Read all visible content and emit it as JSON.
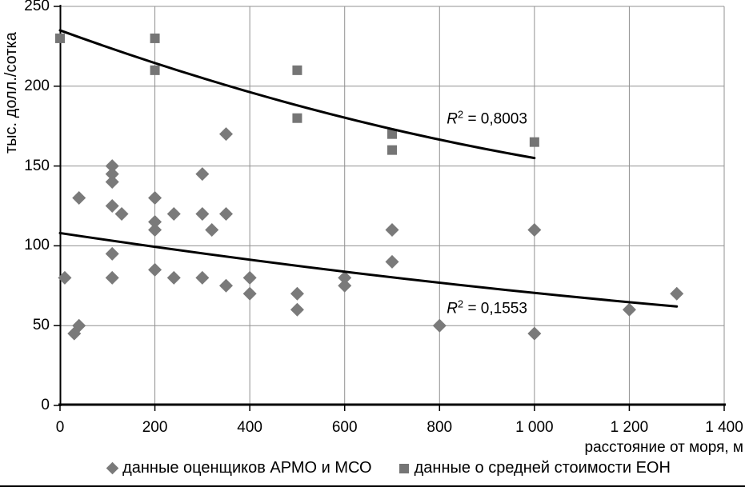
{
  "chart_data": {
    "type": "scatter",
    "xlabel": "расстояние от моря, м",
    "ylabel": "тыс. долл./сотка",
    "xlim": [
      0,
      1400
    ],
    "ylim": [
      0,
      250
    ],
    "x_ticks": [
      0,
      200,
      400,
      600,
      800,
      1000,
      1200,
      1400
    ],
    "x_tick_labels": [
      "0",
      "200",
      "400",
      "600",
      "800",
      "1 000",
      "1 200",
      "1 400"
    ],
    "y_ticks": [
      0,
      50,
      100,
      150,
      200,
      250
    ],
    "y_tick_labels": [
      "0",
      "50",
      "100",
      "150",
      "200",
      "250"
    ],
    "grid": true,
    "legend_position": "bottom",
    "series": [
      {
        "name": "данные оценщиков АРМО и МСО",
        "marker": "diamond",
        "color": "#7a7a7a",
        "points": [
          [
            10,
            80
          ],
          [
            30,
            45
          ],
          [
            40,
            50
          ],
          [
            40,
            130
          ],
          [
            110,
            150
          ],
          [
            110,
            145
          ],
          [
            110,
            140
          ],
          [
            110,
            125
          ],
          [
            110,
            95
          ],
          [
            110,
            80
          ],
          [
            130,
            120
          ],
          [
            200,
            130
          ],
          [
            200,
            115
          ],
          [
            200,
            110
          ],
          [
            200,
            85
          ],
          [
            240,
            120
          ],
          [
            240,
            80
          ],
          [
            300,
            145
          ],
          [
            300,
            120
          ],
          [
            300,
            80
          ],
          [
            320,
            110
          ],
          [
            350,
            170
          ],
          [
            350,
            120
          ],
          [
            350,
            75
          ],
          [
            400,
            80
          ],
          [
            400,
            70
          ],
          [
            500,
            70
          ],
          [
            500,
            60
          ],
          [
            600,
            80
          ],
          [
            600,
            75
          ],
          [
            700,
            110
          ],
          [
            700,
            90
          ],
          [
            800,
            50
          ],
          [
            1000,
            110
          ],
          [
            1000,
            45
          ],
          [
            1200,
            60
          ],
          [
            1300,
            70
          ]
        ]
      },
      {
        "name": "данные о средней стоимости ЕОН",
        "marker": "square",
        "color": "#757575",
        "points": [
          [
            0,
            230
          ],
          [
            200,
            230
          ],
          [
            200,
            210
          ],
          [
            500,
            210
          ],
          [
            500,
            180
          ],
          [
            700,
            170
          ],
          [
            700,
            160
          ],
          [
            1000,
            165
          ]
        ]
      }
    ],
    "trendlines": [
      {
        "for_series": "данные о средней стоимости ЕОН",
        "r2_text": "= 0,8003",
        "path": {
          "start": [
            0,
            235
          ],
          "control": [
            500,
            181
          ],
          "end": [
            1000,
            155
          ]
        },
        "label_at": [
          900,
          180
        ]
      },
      {
        "for_series": "данные оценщиков АРМО и МСО",
        "r2_text": "= 0,1553",
        "path": {
          "start": [
            0,
            108
          ],
          "control": [
            650,
            79
          ],
          "end": [
            1300,
            62
          ]
        },
        "label_at": [
          900,
          61
        ]
      }
    ]
  },
  "labels": {
    "r2_r": "R",
    "r2_sup": "2"
  },
  "legend": {
    "items": [
      {
        "label": "данные оценщиков АРМО и МСО",
        "marker": "diamond"
      },
      {
        "label": "данные о средней стоимости ЕОН",
        "marker": "square"
      }
    ]
  },
  "colors": {
    "diamond_marker": "#7a7a7a",
    "square_marker": "#757575",
    "trendline": "#000000",
    "gridline": "#909090",
    "axis": "#000000",
    "text": "#000000"
  }
}
